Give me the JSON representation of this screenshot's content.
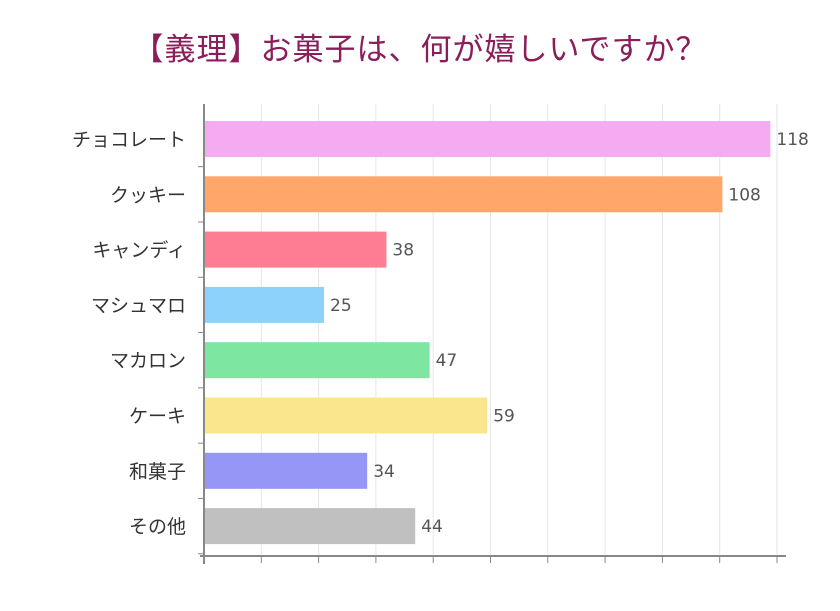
{
  "chart_data": {
    "type": "bar",
    "orientation": "horizontal",
    "title": "【義理】お菓子は、何が嬉しいですか？",
    "categories": [
      "チョコレート",
      "クッキー",
      "キャンディ",
      "マシュマロ",
      "マカロン",
      "ケーキ",
      "和菓子",
      "その他"
    ],
    "values": [
      118,
      108,
      38,
      25,
      47,
      59,
      34,
      44
    ],
    "colors": [
      "#f5abf0",
      "#ffa76b",
      "#ff7d92",
      "#8dd2fa",
      "#7de6a1",
      "#fae68c",
      "#9596f5",
      "#c0c0c0"
    ],
    "xlim": [
      0,
      120
    ],
    "grid": true,
    "legend": "none",
    "xlabel": "",
    "ylabel": ""
  }
}
